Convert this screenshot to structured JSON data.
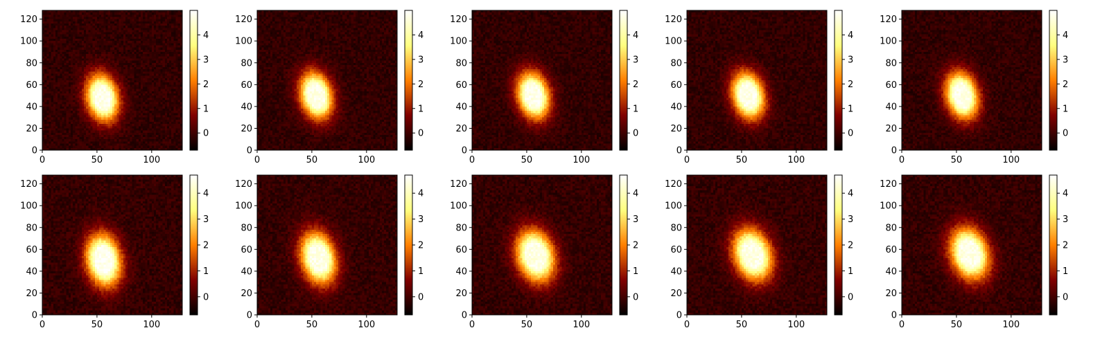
{
  "chart_data": {
    "type": "heatmap",
    "colormap": "afmhot",
    "grid": false,
    "layout": "2 rows x 5 columns",
    "x_ticks": [
      0,
      50,
      100
    ],
    "y_ticks": [
      0,
      20,
      40,
      60,
      80,
      100,
      120
    ],
    "xlim": [
      0,
      128
    ],
    "ylim": [
      0,
      128
    ],
    "panels": [
      {
        "row": 1,
        "col": 1,
        "blob_center": [
          55,
          48
        ],
        "blob_sigma": [
          12,
          18
        ],
        "tilt_deg": -12,
        "peak": 4.9,
        "colorbar_range": [
          -0.7,
          5.0
        ],
        "colorbar_ticks": [
          0,
          1,
          2,
          3,
          4
        ]
      },
      {
        "row": 1,
        "col": 2,
        "blob_center": [
          54,
          50
        ],
        "blob_sigma": [
          12,
          18
        ],
        "tilt_deg": -14,
        "peak": 4.9,
        "colorbar_range": [
          -0.7,
          5.0
        ],
        "colorbar_ticks": [
          0,
          1,
          2,
          3,
          4
        ]
      },
      {
        "row": 1,
        "col": 3,
        "blob_center": [
          56,
          50
        ],
        "blob_sigma": [
          12,
          18
        ],
        "tilt_deg": -14,
        "peak": 4.9,
        "colorbar_range": [
          -0.7,
          5.0
        ],
        "colorbar_ticks": [
          0,
          1,
          2,
          3,
          4
        ]
      },
      {
        "row": 1,
        "col": 4,
        "blob_center": [
          56,
          50
        ],
        "blob_sigma": [
          12,
          18
        ],
        "tilt_deg": -14,
        "peak": 4.9,
        "colorbar_range": [
          -0.7,
          5.0
        ],
        "colorbar_ticks": [
          0,
          1,
          2,
          3,
          4
        ]
      },
      {
        "row": 1,
        "col": 5,
        "blob_center": [
          55,
          50
        ],
        "blob_sigma": [
          12,
          18
        ],
        "tilt_deg": -14,
        "peak": 4.9,
        "colorbar_range": [
          -0.7,
          5.0
        ],
        "colorbar_ticks": [
          0,
          1,
          2,
          3,
          4
        ]
      },
      {
        "row": 2,
        "col": 1,
        "blob_center": [
          56,
          50
        ],
        "blob_sigma": [
          13,
          20
        ],
        "tilt_deg": -10,
        "peak": 4.7,
        "colorbar_range": [
          -0.7,
          4.7
        ],
        "colorbar_ticks": [
          0,
          1,
          2,
          3,
          4
        ]
      },
      {
        "row": 2,
        "col": 2,
        "blob_center": [
          56,
          52
        ],
        "blob_sigma": [
          13,
          20
        ],
        "tilt_deg": -14,
        "peak": 4.6,
        "colorbar_range": [
          -0.7,
          4.7
        ],
        "colorbar_ticks": [
          0,
          1,
          2,
          3,
          4
        ]
      },
      {
        "row": 2,
        "col": 3,
        "blob_center": [
          58,
          54
        ],
        "blob_sigma": [
          14,
          20
        ],
        "tilt_deg": -16,
        "peak": 4.6,
        "colorbar_range": [
          -0.7,
          4.7
        ],
        "colorbar_ticks": [
          0,
          1,
          2,
          3,
          4
        ]
      },
      {
        "row": 2,
        "col": 4,
        "blob_center": [
          60,
          55
        ],
        "blob_sigma": [
          14,
          20
        ],
        "tilt_deg": -18,
        "peak": 4.6,
        "colorbar_range": [
          -0.7,
          4.7
        ],
        "colorbar_ticks": [
          0,
          1,
          2,
          3,
          4
        ]
      },
      {
        "row": 2,
        "col": 5,
        "blob_center": [
          62,
          56
        ],
        "blob_sigma": [
          14,
          20
        ],
        "tilt_deg": -18,
        "peak": 4.6,
        "colorbar_range": [
          -0.7,
          4.7
        ],
        "colorbar_ticks": [
          0,
          1,
          2,
          3,
          4
        ]
      }
    ]
  }
}
